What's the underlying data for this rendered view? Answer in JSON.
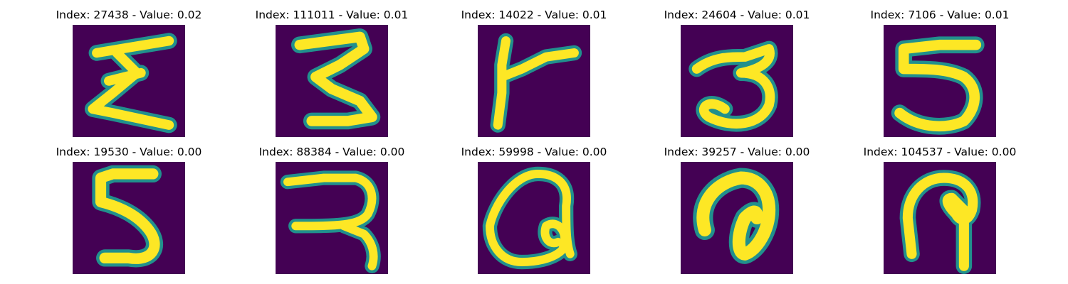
{
  "colors": {
    "background": "#440154",
    "glow": "#21908d",
    "mid": "#5ec962",
    "stroke": "#fde725"
  },
  "panels": [
    {
      "title": "Index: 27438 - Value: 0.02",
      "glyph": "E-like"
    },
    {
      "title": "Index: 111011 - Value: 0.01",
      "glyph": "3-like"
    },
    {
      "title": "Index: 14022 - Value: 0.01",
      "glyph": "F-like"
    },
    {
      "title": "Index: 24604 - Value: 0.01",
      "glyph": "3"
    },
    {
      "title": "Index: 7106 - Value: 0.01",
      "glyph": "5"
    },
    {
      "title": "Index: 19530 - Value: 0.00",
      "glyph": "5"
    },
    {
      "title": "Index: 88384 - Value: 0.00",
      "glyph": "R-like"
    },
    {
      "title": "Index: 59998 - Value: 0.00",
      "glyph": "Q-like"
    },
    {
      "title": "Index: 39257 - Value: 0.00",
      "glyph": "a-like"
    },
    {
      "title": "Index: 104537 - Value: 0.00",
      "glyph": "P-like"
    }
  ]
}
